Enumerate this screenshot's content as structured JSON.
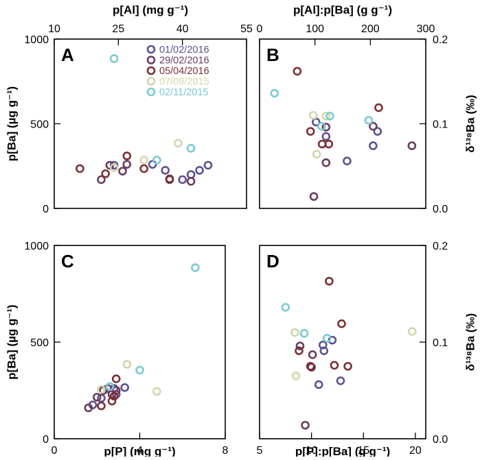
{
  "series_colors": {
    "01/02/2016": "#5b4f94",
    "29/02/2016": "#6a3b5e",
    "05/04/2016": "#7b2f32",
    "07/09/2015": "#cfd8a8",
    "02/11/2015": "#7ac9d4"
  },
  "legend": [
    "01/02/2016",
    "29/02/2016",
    "05/04/2016",
    "07/09/2015",
    "02/11/2015"
  ],
  "chart_data": [
    {
      "panel": "A",
      "type": "scatter",
      "xlabel": "p[Al] (mg g⁻¹)",
      "xaxis_position": "top",
      "ylabel": "p[Ba] (µg g⁻¹)",
      "yaxis_position": "left",
      "xlim": [
        10,
        55
      ],
      "ylim": [
        0,
        1000
      ],
      "xticks": [
        10,
        25,
        40,
        55
      ],
      "yticks": [
        0,
        500,
        1000
      ],
      "legend_position": "top-right",
      "series": [
        {
          "name": "01/02/2016",
          "points": [
            [
              24,
              255
            ],
            [
              33,
              260
            ],
            [
              36,
              225
            ],
            [
              40,
              170
            ],
            [
              42,
              200
            ],
            [
              44,
              225
            ],
            [
              46,
              255
            ]
          ]
        },
        {
          "name": "29/02/2016",
          "points": [
            [
              21,
              170
            ],
            [
              26,
              220
            ],
            [
              37,
              175
            ],
            [
              42,
              160
            ],
            [
              27,
              260
            ],
            [
              23,
              255
            ]
          ]
        },
        {
          "name": "05/04/2016",
          "points": [
            [
              16,
              235
            ],
            [
              22,
              205
            ],
            [
              27,
              310
            ],
            [
              31,
              235
            ],
            [
              37,
              170
            ]
          ]
        },
        {
          "name": "07/09/2015",
          "points": [
            [
              24,
              240
            ],
            [
              31,
              285
            ],
            [
              39,
              385
            ]
          ]
        },
        {
          "name": "02/11/2015",
          "points": [
            [
              24,
              885
            ],
            [
              34,
              285
            ],
            [
              42,
              355
            ]
          ]
        }
      ]
    },
    {
      "panel": "B",
      "type": "scatter",
      "xlabel": "p[Al]:p[Ba] (g g⁻¹)",
      "xaxis_position": "top",
      "ylabel": "δ¹³⁸Ba (‰)",
      "yaxis_position": "right",
      "xlim": [
        0,
        300
      ],
      "ylim": [
        0,
        0.2
      ],
      "xticks": [
        0,
        100,
        200,
        300
      ],
      "yticks": [
        0.0,
        0.1,
        0.2
      ],
      "series": [
        {
          "name": "01/02/2016",
          "points": [
            [
              102,
              0.102
            ],
            [
              120,
              0.085
            ],
            [
              158,
              0.056
            ],
            [
              205,
              0.074
            ],
            [
              213,
              0.091
            ]
          ]
        },
        {
          "name": "29/02/2016",
          "points": [
            [
              98,
              0.014
            ],
            [
              120,
              0.096
            ],
            [
              120,
              0.054
            ],
            [
              205,
              0.097
            ],
            [
              275,
              0.074
            ]
          ]
        },
        {
          "name": "05/04/2016",
          "points": [
            [
              68,
              0.162
            ],
            [
              92,
              0.091
            ],
            [
              113,
              0.076
            ],
            [
              125,
              0.076
            ],
            [
              215,
              0.119
            ]
          ]
        },
        {
          "name": "07/09/2015",
          "points": [
            [
              97,
              0.11
            ],
            [
              103,
              0.064
            ],
            [
              120,
              0.109
            ]
          ]
        },
        {
          "name": "02/11/2015",
          "points": [
            [
              27,
              0.136
            ],
            [
              112,
              0.097
            ],
            [
              127,
              0.109
            ],
            [
              197,
              0.104
            ]
          ]
        }
      ]
    },
    {
      "panel": "C",
      "type": "scatter",
      "xlabel": "p[P] (mg g⁻¹)",
      "xaxis_position": "bottom",
      "ylabel": "p[Ba] (µg g⁻¹)",
      "yaxis_position": "left",
      "xlim": [
        0,
        8
      ],
      "ylim": [
        0,
        1000
      ],
      "xticks": [
        0,
        4,
        8
      ],
      "yticks": [
        0,
        500,
        1000
      ],
      "series": [
        {
          "name": "01/02/2016",
          "points": [
            [
              1.8,
              175
            ],
            [
              2.2,
              210
            ],
            [
              2.5,
              260
            ],
            [
              2.9,
              230
            ],
            [
              3.3,
              265
            ]
          ]
        },
        {
          "name": "29/02/2016",
          "points": [
            [
              1.6,
              160
            ],
            [
              2.0,
              215
            ],
            [
              2.3,
              250
            ],
            [
              2.7,
              230
            ],
            [
              2.8,
              260
            ],
            [
              2.9,
              250
            ]
          ]
        },
        {
          "name": "05/04/2016",
          "points": [
            [
              2.2,
              170
            ],
            [
              2.7,
              195
            ],
            [
              2.8,
              220
            ],
            [
              2.9,
              310
            ]
          ]
        },
        {
          "name": "07/09/2015",
          "points": [
            [
              2.2,
              255
            ],
            [
              4.8,
              245
            ],
            [
              3.4,
              385
            ]
          ]
        },
        {
          "name": "02/11/2015",
          "points": [
            [
              4.0,
              355
            ],
            [
              2.6,
              270
            ],
            [
              6.6,
              885
            ]
          ]
        }
      ]
    },
    {
      "panel": "D",
      "type": "scatter",
      "xlabel": "p[P]:p[Ba] (g g⁻¹)",
      "xaxis_position": "bottom",
      "ylabel": "δ¹³⁸Ba (‰)",
      "yaxis_position": "right",
      "xlim": [
        5,
        21
      ],
      "ylim": [
        0,
        0.2
      ],
      "xticks": [
        5,
        10,
        15,
        20
      ],
      "yticks": [
        0.0,
        0.1,
        0.2
      ],
      "series": [
        {
          "name": "01/02/2016",
          "points": [
            [
              10.7,
              0.056
            ],
            [
              11.1,
              0.097
            ],
            [
              11.2,
              0.091
            ],
            [
              12.0,
              0.102
            ],
            [
              12.8,
              0.06
            ]
          ]
        },
        {
          "name": "29/02/2016",
          "points": [
            [
              8.9,
              0.096
            ],
            [
              9.4,
              0.014
            ],
            [
              10.0,
              0.074
            ],
            [
              10.1,
              0.087
            ]
          ]
        },
        {
          "name": "05/04/2016",
          "points": [
            [
              8.8,
              0.091
            ],
            [
              9.9,
              0.075
            ],
            [
              11.7,
              0.163
            ],
            [
              12.2,
              0.076
            ],
            [
              13.5,
              0.075
            ],
            [
              12.9,
              0.119
            ]
          ]
        },
        {
          "name": "07/09/2015",
          "points": [
            [
              8.4,
              0.11
            ],
            [
              8.5,
              0.065
            ],
            [
              19.7,
              0.111
            ]
          ]
        },
        {
          "name": "02/11/2015",
          "points": [
            [
              7.5,
              0.136
            ],
            [
              9.3,
              0.109
            ],
            [
              11.5,
              0.104
            ]
          ]
        }
      ]
    }
  ]
}
